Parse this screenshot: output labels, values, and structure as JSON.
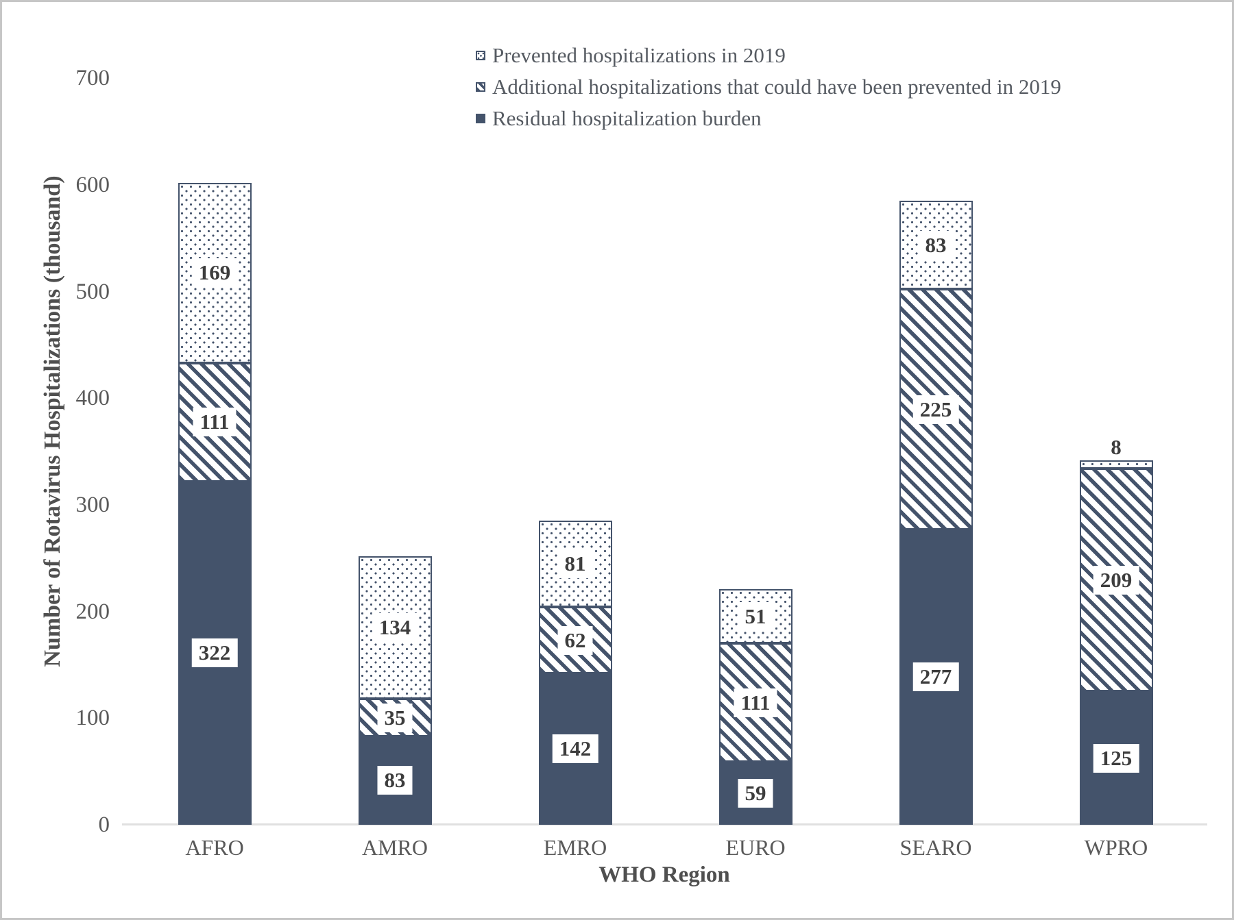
{
  "chart_data": {
    "type": "bar",
    "stacked": true,
    "title": "",
    "xlabel": "WHO Region",
    "ylabel": "Number of Rotavirus Hospitalizations (thousand)",
    "categories": [
      "AFRO",
      "AMRO",
      "EMRO",
      "EURO",
      "SEARO",
      "WPRO"
    ],
    "series": [
      {
        "name": "Residual hospitalization burden",
        "pattern": "solid",
        "values": [
          322,
          83,
          142,
          59,
          277,
          125
        ]
      },
      {
        "name": "Additional hospitalizations that could have been prevented in 2019",
        "pattern": "diagonal-hatch",
        "values": [
          111,
          35,
          62,
          111,
          225,
          209
        ]
      },
      {
        "name": "Prevented hospitalizations in 2019",
        "pattern": "dotted",
        "values": [
          169,
          134,
          81,
          51,
          83,
          8
        ]
      }
    ],
    "legend_order": [
      2,
      1,
      0
    ],
    "legend_position": "top-center",
    "ylim": [
      0,
      700
    ],
    "yticks": [
      0,
      100,
      200,
      300,
      400,
      500,
      600,
      700
    ],
    "grid": false,
    "colors": {
      "bar_fill": "#44536B",
      "pattern_background": "#ffffff",
      "axis_text": "#595959",
      "axis_title_text": "#4f4f4f",
      "legend_text": "#565b62",
      "data_label_text": "#3d3d3d",
      "data_label_background": "#ffffff",
      "axis_line": "#e0e0e0",
      "figure_border": "#c6c6c6"
    }
  }
}
